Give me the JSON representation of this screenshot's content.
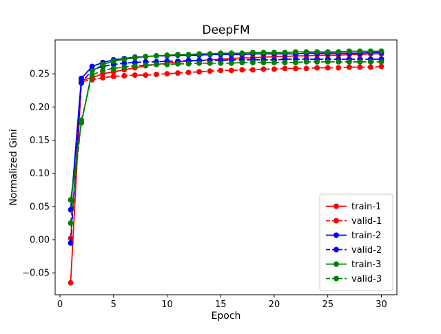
{
  "chart_data": {
    "type": "line",
    "title": "DeepFM",
    "xlabel": "Epoch",
    "ylabel": "Normalized Gini",
    "grid": false,
    "legend_position": "lower right",
    "xlim": [
      -0.45,
      31.45
    ],
    "ylim": [
      -0.083,
      0.301
    ],
    "xtick_values": [
      0,
      5,
      10,
      15,
      20,
      25,
      30
    ],
    "xtick_labels": [
      "0",
      "5",
      "10",
      "15",
      "20",
      "25",
      "30"
    ],
    "ytick_values": [
      -0.05,
      0.0,
      0.05,
      0.1,
      0.15,
      0.2,
      0.25
    ],
    "ytick_labels": [
      "−0.05",
      "0.00",
      "0.05",
      "0.10",
      "0.15",
      "0.20",
      "0.25"
    ],
    "x": [
      1,
      2,
      3,
      4,
      5,
      6,
      7,
      8,
      9,
      10,
      11,
      12,
      13,
      14,
      15,
      16,
      17,
      18,
      19,
      20,
      21,
      22,
      23,
      24,
      25,
      26,
      27,
      28,
      29,
      30
    ],
    "series": [
      {
        "name": "train-1",
        "color": "#ff0000",
        "linestyle": "solid",
        "marker": "o",
        "values": [
          -0.065,
          0.24,
          0.244,
          0.25,
          0.253,
          0.256,
          0.259,
          0.262,
          0.264,
          0.266,
          0.268,
          0.269,
          0.27,
          0.271,
          0.272,
          0.273,
          0.274,
          0.274,
          0.275,
          0.276,
          0.276,
          0.277,
          0.277,
          0.278,
          0.278,
          0.278,
          0.279,
          0.279,
          0.28,
          0.28
        ]
      },
      {
        "name": "valid-1",
        "color": "#ff0000",
        "linestyle": "dashed",
        "marker": "o",
        "values": [
          0.002,
          0.238,
          0.241,
          0.244,
          0.246,
          0.247,
          0.248,
          0.248,
          0.249,
          0.25,
          0.251,
          0.252,
          0.253,
          0.254,
          0.255,
          0.255,
          0.256,
          0.256,
          0.257,
          0.257,
          0.258,
          0.258,
          0.258,
          0.259,
          0.259,
          0.259,
          0.26,
          0.26,
          0.26,
          0.261
        ]
      },
      {
        "name": "train-2",
        "color": "#0000ff",
        "linestyle": "solid",
        "marker": "o",
        "values": [
          0.045,
          0.243,
          0.261,
          0.267,
          0.271,
          0.273,
          0.275,
          0.276,
          0.277,
          0.277,
          0.278,
          0.278,
          0.278,
          0.279,
          0.279,
          0.279,
          0.279,
          0.28,
          0.28,
          0.28,
          0.28,
          0.28,
          0.281,
          0.281,
          0.281,
          0.281,
          0.281,
          0.281,
          0.282,
          0.282
        ]
      },
      {
        "name": "valid-2",
        "color": "#0000ff",
        "linestyle": "dashed",
        "marker": "o",
        "values": [
          -0.005,
          0.236,
          0.256,
          0.261,
          0.264,
          0.266,
          0.267,
          0.268,
          0.268,
          0.269,
          0.269,
          0.27,
          0.27,
          0.27,
          0.27,
          0.271,
          0.271,
          0.271,
          0.271,
          0.271,
          0.272,
          0.272,
          0.272,
          0.272,
          0.272,
          0.272,
          0.272,
          0.272,
          0.272,
          0.272
        ]
      },
      {
        "name": "train-3",
        "color": "#008000",
        "linestyle": "solid",
        "marker": "o",
        "values": [
          0.06,
          0.176,
          0.254,
          0.264,
          0.269,
          0.272,
          0.274,
          0.276,
          0.277,
          0.278,
          0.279,
          0.279,
          0.28,
          0.28,
          0.281,
          0.281,
          0.281,
          0.282,
          0.282,
          0.282,
          0.282,
          0.283,
          0.283,
          0.283,
          0.283,
          0.283,
          0.284,
          0.284,
          0.284,
          0.284
        ]
      },
      {
        "name": "valid-3",
        "color": "#008000",
        "linestyle": "dashed",
        "marker": "o",
        "values": [
          0.025,
          0.18,
          0.248,
          0.255,
          0.258,
          0.26,
          0.262,
          0.263,
          0.264,
          0.264,
          0.265,
          0.265,
          0.266,
          0.266,
          0.266,
          0.266,
          0.267,
          0.267,
          0.267,
          0.267,
          0.267,
          0.267,
          0.268,
          0.268,
          0.268,
          0.268,
          0.268,
          0.268,
          0.268,
          0.268
        ]
      }
    ]
  }
}
